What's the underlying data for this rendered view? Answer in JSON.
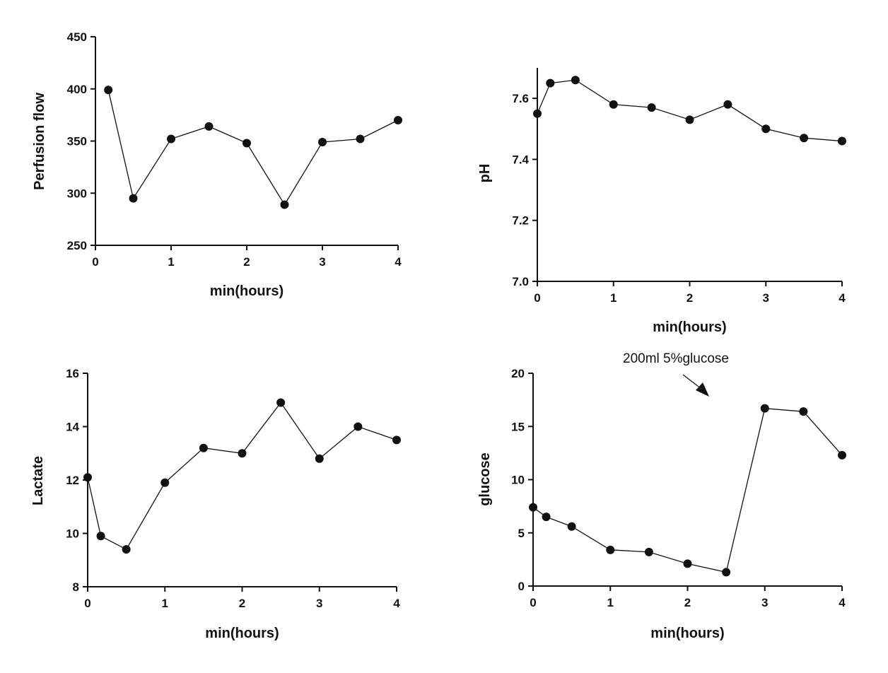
{
  "chart_data": [
    {
      "type": "line",
      "id": "perfusion",
      "xlabel": "min(hours)",
      "ylabel": "Perfusion flow",
      "xlim": [
        0,
        4
      ],
      "ylim": [
        250,
        450
      ],
      "xticks": [
        0,
        1,
        2,
        3,
        4
      ],
      "yticks": [
        250,
        300,
        350,
        400,
        450
      ],
      "series": [
        {
          "name": "Perfusion flow",
          "x": [
            0.17,
            0.5,
            1,
            1.5,
            2,
            2.5,
            3,
            3.5,
            4
          ],
          "y": [
            399,
            295,
            352,
            364,
            348,
            289,
            349,
            352,
            370
          ]
        }
      ]
    },
    {
      "type": "line",
      "id": "ph",
      "xlabel": "min(hours)",
      "ylabel": "pH",
      "xlim": [
        0,
        4
      ],
      "ylim": [
        7.0,
        7.7
      ],
      "xticks": [
        0,
        1,
        2,
        3,
        4
      ],
      "yticks": [
        7.0,
        7.2,
        7.4,
        7.6
      ],
      "ytick_labels": [
        "7.0",
        "7.2",
        "7.4",
        "7.6"
      ],
      "series": [
        {
          "name": "pH",
          "x": [
            0,
            0.17,
            0.5,
            1,
            1.5,
            2,
            2.5,
            3,
            3.5,
            4
          ],
          "y": [
            7.55,
            7.65,
            7.66,
            7.58,
            7.57,
            7.53,
            7.58,
            7.5,
            7.47,
            7.46
          ]
        }
      ]
    },
    {
      "type": "line",
      "id": "lactate",
      "xlabel": "min(hours)",
      "ylabel": "Lactate",
      "xlim": [
        0,
        4
      ],
      "ylim": [
        8,
        16
      ],
      "xticks": [
        0,
        1,
        2,
        3,
        4
      ],
      "yticks": [
        8,
        10,
        12,
        14,
        16
      ],
      "series": [
        {
          "name": "Lactate",
          "x": [
            0,
            0.17,
            0.5,
            1,
            1.5,
            2,
            2.5,
            3,
            3.5,
            4
          ],
          "y": [
            12.1,
            9.9,
            9.4,
            11.9,
            13.2,
            13.0,
            14.9,
            12.8,
            14.0,
            13.5
          ]
        }
      ]
    },
    {
      "type": "line",
      "id": "glucose",
      "xlabel": "min(hours)",
      "ylabel": "glucose",
      "xlim": [
        0,
        4
      ],
      "ylim": [
        0,
        20
      ],
      "xticks": [
        0,
        1,
        2,
        3,
        4
      ],
      "yticks": [
        0,
        5,
        10,
        15,
        20
      ],
      "annotation": "200ml 5%glucose",
      "series": [
        {
          "name": "glucose",
          "x": [
            0,
            0.17,
            0.5,
            1,
            1.5,
            2,
            2.5,
            3,
            3.5,
            4
          ],
          "y": [
            7.4,
            6.5,
            5.6,
            3.4,
            3.2,
            2.1,
            1.3,
            16.7,
            16.4,
            12.3
          ]
        }
      ]
    }
  ]
}
